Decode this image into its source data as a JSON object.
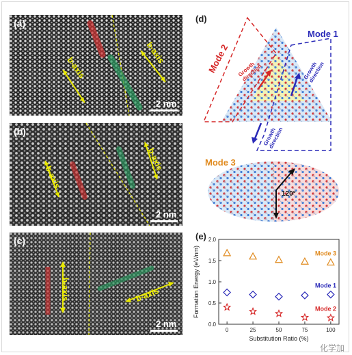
{
  "panels": {
    "a": {
      "label": "(a)",
      "axis_left": "b-axis",
      "axis_right": "b-axis",
      "scale": "2 nm"
    },
    "b": {
      "label": "(b)",
      "axis_left": "b-axis",
      "axis_right": "b-axis",
      "scale": "2 nm"
    },
    "c": {
      "label": "(c)",
      "axis_left": "b-axis",
      "axis_right": "b-axis",
      "scale": "2 nm"
    }
  },
  "panel_d": {
    "label": "(d)",
    "mode1": "Mode 1",
    "mode2": "Mode 2",
    "mode3": "Mode 3",
    "growth1": "Growth direction",
    "growth2": "Growth direction",
    "growth3": "Growth direction",
    "angle": "120°"
  },
  "watermark": "化学加",
  "chart_data": {
    "type": "scatter",
    "title": "",
    "panel_label": "(e)",
    "xlabel": "Substitution Ratio (%)",
    "ylabel": "Formation Energy (eV/nm)",
    "xlim": [
      -8,
      108
    ],
    "ylim": [
      0.0,
      2.0
    ],
    "xticks": [
      0,
      25,
      50,
      75,
      100
    ],
    "yticks": [
      0.0,
      0.5,
      1.0,
      1.5,
      2.0
    ],
    "x": [
      0,
      25,
      50,
      75,
      100
    ],
    "series": [
      {
        "name": "Mode 3",
        "marker": "triangle",
        "color": "#e08a1e",
        "values": [
          1.68,
          1.6,
          1.52,
          1.48,
          1.46
        ]
      },
      {
        "name": "Mode 1",
        "marker": "diamond",
        "color": "#2a2ab8",
        "values": [
          0.75,
          0.7,
          0.65,
          0.68,
          0.7
        ]
      },
      {
        "name": "Mode 2",
        "marker": "star",
        "color": "#d62828",
        "values": [
          0.4,
          0.3,
          0.25,
          0.16,
          0.15
        ]
      }
    ]
  }
}
